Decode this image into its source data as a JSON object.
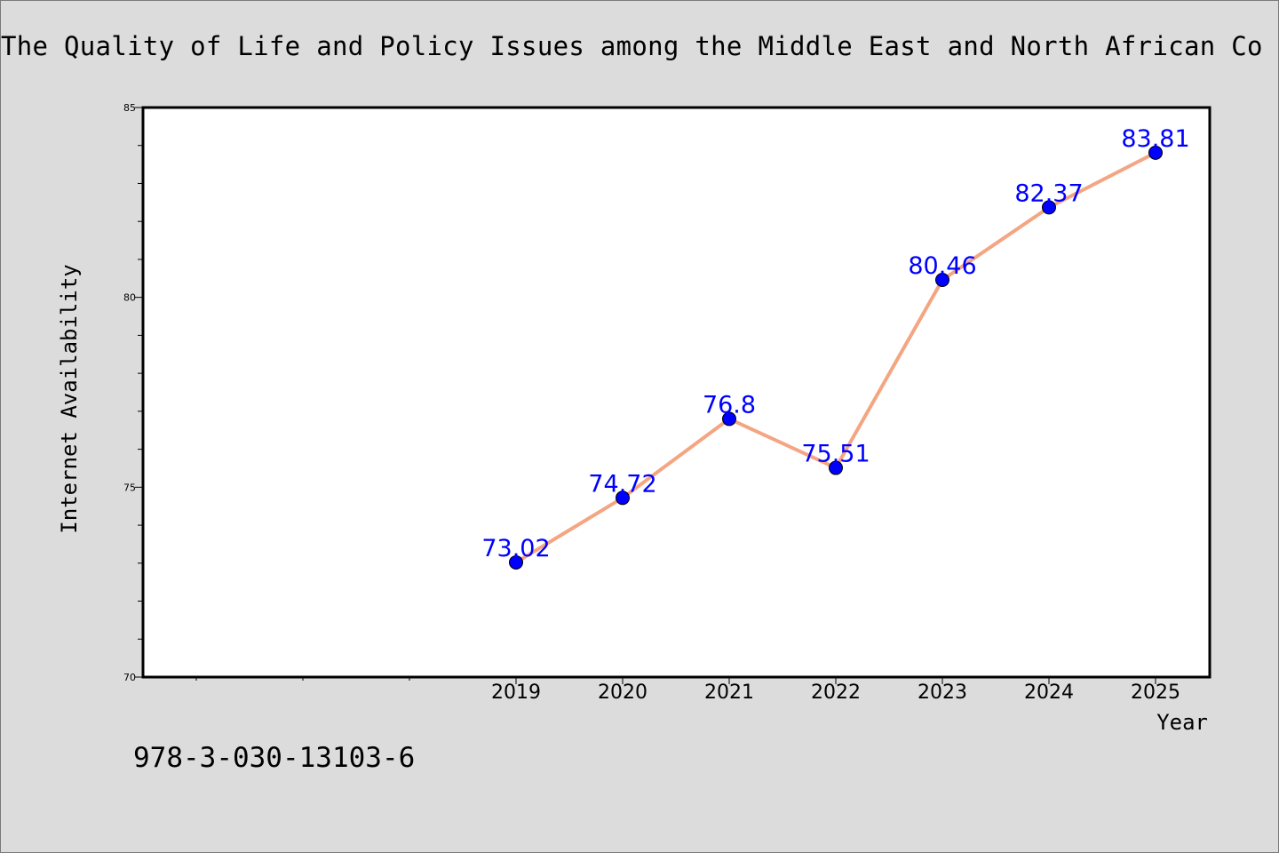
{
  "colors": {
    "background": "#dcdcdc",
    "plot_background": "#ffffff",
    "line": "#f4a582",
    "marker": "#0000ff",
    "data_label": "#0000ff"
  },
  "footer_text": "978-3-030-13103-6",
  "chart_data": {
    "type": "line",
    "title": "The Quality of Life and Policy Issues among the Middle East and North African Co",
    "xlabel": "Year",
    "ylabel": "Internet Availability",
    "categories": [
      "2019",
      "2020",
      "2021",
      "2022",
      "2023",
      "2024",
      "2025"
    ],
    "values": [
      73.02,
      74.72,
      76.8,
      75.51,
      80.46,
      82.37,
      83.81
    ],
    "data_labels": [
      "73.02",
      "74.72",
      "76.8",
      "75.51",
      "80.46",
      "82.37",
      "83.81"
    ],
    "ylim": [
      70,
      85
    ],
    "yticks": [
      70,
      75,
      80,
      85
    ],
    "ytick_labels": [
      "70",
      "75",
      "80",
      "85"
    ],
    "grid": false,
    "legend": "none"
  }
}
